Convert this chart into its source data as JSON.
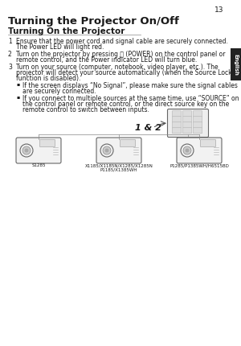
{
  "page_num": "13",
  "title": "Turning the Projector On/Off",
  "subtitle": "Turning On the Projector",
  "bg_color": "#ffffff",
  "text_color": "#1a1a1a",
  "tab_color": "#222222",
  "tab_text": "English",
  "item1_num": "1",
  "item1_line1": "Ensure that the power cord and signal cable are securely connected.",
  "item1_line2": "The Power LED will light red.",
  "item2_num": "2",
  "item2_line1": "Turn on the projector by pressing ⒤ (POWER) on the control panel or",
  "item2_line2": "remote control, and the Power indicator LED will turn blue.",
  "item3_num": "3",
  "item3_line1": "Turn on your source (computer, notebook, video player, etc.). The",
  "item3_line2": "projector will detect your source automatically (when the Source Lock",
  "item3_line3": "function is disabled).",
  "bullet1_line1": "If the screen displays “No Signal”, please make sure the signal cables",
  "bullet1_line2": "are securely connected.",
  "bullet2_line1": "If you connect to multiple sources at the same time, use “SOURCE” on",
  "bullet2_line2": "the control panel or remote control, or the direct source key on the",
  "bullet2_line3": "remote control to switch between inputs.",
  "label_12": "1 & 2",
  "proj_label1": "S1285",
  "proj_label2a": "X1185/X1185N/X1285/X1285N",
  "proj_label2b": "P1185/X1385WH",
  "proj_label3": "P1285/P1385WH/H6515BD"
}
